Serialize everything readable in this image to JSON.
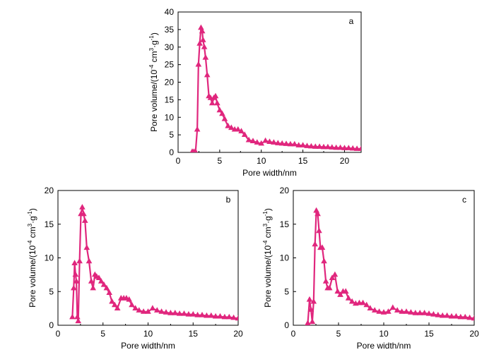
{
  "chart_data": [
    {
      "type": "line",
      "panel_label": "a",
      "xlabel": "Pore width/nm",
      "ylabel_main": "Pore volume/(10",
      "ylabel_exp1": "-4",
      "ylabel_mid": " cm",
      "ylabel_exp2": "3",
      "ylabel_mid2": "·g",
      "ylabel_exp3": "-1",
      "ylabel_end": ")",
      "xlim": [
        0,
        22
      ],
      "ylim": [
        0,
        40
      ],
      "xticks": [
        "0",
        "5",
        "10",
        "15",
        "20"
      ],
      "yticks": [
        "0",
        "5",
        "10",
        "15",
        "20",
        "25",
        "30",
        "35",
        "40"
      ],
      "color": "#e0267d",
      "marker": "triangle",
      "grid": false,
      "series": [
        {
          "x": [
            1.7,
            1.9,
            2.1,
            2.3,
            2.45,
            2.6,
            2.75,
            2.9,
            3.0,
            3.15,
            3.3,
            3.5,
            3.7,
            3.9,
            4.1,
            4.3,
            4.5,
            4.7,
            5.0,
            5.3,
            5.6,
            6.0,
            6.4,
            6.8,
            7.2,
            7.6,
            8.0,
            8.5,
            9.0,
            9.5,
            10.0,
            10.5,
            11.0,
            11.5,
            12.0,
            12.5,
            13.0,
            13.5,
            14.0,
            14.5,
            15.0,
            15.5,
            16.0,
            16.5,
            17.0,
            17.5,
            18.0,
            18.5,
            19.0,
            19.5,
            20.0,
            20.5,
            21.0,
            21.5,
            22.0
          ],
          "y": [
            0.2,
            0.2,
            0.2,
            6.5,
            25,
            31,
            35.5,
            34.5,
            32,
            30,
            27,
            22,
            16,
            15.5,
            14,
            15.5,
            16,
            14,
            12,
            11,
            9.5,
            7.5,
            7,
            6.5,
            6.5,
            6,
            5,
            3.5,
            3.2,
            2.8,
            2.5,
            3.3,
            3,
            2.8,
            2.6,
            2.5,
            2.4,
            2.3,
            2.3,
            2.0,
            2.0,
            1.8,
            1.7,
            1.6,
            1.6,
            1.5,
            1.5,
            1.4,
            1.3,
            1.3,
            1.2,
            1.2,
            1.1,
            1.0,
            1.0
          ]
        }
      ]
    },
    {
      "type": "line",
      "panel_label": "b",
      "xlabel": "Pore width/nm",
      "ylabel_main": "Pore volume/(10",
      "ylabel_exp1": "-4",
      "ylabel_mid": " cm",
      "ylabel_exp2": "3",
      "ylabel_mid2": "·g",
      "ylabel_exp3": "-1",
      "ylabel_end": ")",
      "xlim": [
        0,
        20
      ],
      "ylim": [
        0,
        20
      ],
      "xticks": [
        "0",
        "5",
        "10",
        "15",
        "20"
      ],
      "yticks": [
        "0",
        "5",
        "10",
        "15",
        "20"
      ],
      "color": "#e0267d",
      "marker": "triangle",
      "grid": false,
      "series": [
        {
          "x": [
            1.6,
            1.75,
            1.85,
            1.95,
            2.05,
            2.15,
            2.25,
            2.4,
            2.55,
            2.7,
            2.85,
            3.0,
            3.2,
            3.45,
            3.7,
            3.9,
            4.1,
            4.3,
            4.55,
            4.8,
            5.1,
            5.4,
            5.7,
            6.0,
            6.3,
            6.6,
            7.0,
            7.3,
            7.6,
            7.9,
            8.2,
            8.6,
            9.0,
            9.5,
            10.0,
            10.5,
            11.0,
            11.5,
            12.0,
            12.5,
            13.0,
            13.5,
            14.0,
            14.5,
            15.0,
            15.5,
            16.0,
            16.5,
            17.0,
            17.5,
            18.0,
            18.5,
            19.0,
            19.5,
            20.0
          ],
          "y": [
            1.2,
            5.5,
            9.2,
            7.5,
            6.5,
            1.2,
            0.6,
            9.5,
            16.5,
            17.5,
            16.5,
            15.5,
            11.5,
            9.5,
            6.5,
            5.5,
            7.5,
            7.2,
            7,
            6.5,
            6,
            5.5,
            4.8,
            3.5,
            3,
            2.5,
            4,
            4,
            4,
            3.8,
            3,
            2.5,
            2.2,
            2,
            2,
            2.5,
            2.2,
            2,
            1.9,
            1.8,
            1.8,
            1.7,
            1.7,
            1.6,
            1.6,
            1.5,
            1.5,
            1.4,
            1.4,
            1.3,
            1.3,
            1.2,
            1.2,
            1.1,
            1.0
          ]
        }
      ]
    },
    {
      "type": "line",
      "panel_label": "c",
      "xlabel": "Pore width/nm",
      "ylabel_main": "Pore volume/(10",
      "ylabel_exp1": "-4",
      "ylabel_mid": " cm",
      "ylabel_exp2": "3",
      "ylabel_mid2": "·g",
      "ylabel_exp3": "-1",
      "ylabel_end": ")",
      "xlim": [
        0,
        20
      ],
      "ylim": [
        0,
        20
      ],
      "xticks": [
        "0",
        "5",
        "10",
        "15",
        "20"
      ],
      "yticks": [
        "0",
        "5",
        "10",
        "15",
        "20"
      ],
      "color": "#e0267d",
      "marker": "triangle",
      "grid": false,
      "series": [
        {
          "x": [
            1.6,
            1.8,
            1.95,
            2.1,
            2.25,
            2.4,
            2.55,
            2.7,
            2.85,
            3.0,
            3.2,
            3.4,
            3.6,
            3.8,
            4.0,
            4.3,
            4.6,
            4.9,
            5.2,
            5.5,
            5.8,
            6.1,
            6.5,
            6.9,
            7.3,
            7.7,
            8.1,
            8.5,
            9.0,
            9.5,
            10.0,
            10.5,
            11.0,
            11.5,
            12.0,
            12.5,
            13.0,
            13.5,
            14.0,
            14.5,
            15.0,
            15.5,
            16.0,
            16.5,
            17.0,
            17.5,
            18.0,
            18.5,
            19.0,
            19.5,
            20.0
          ],
          "y": [
            0.3,
            3.8,
            2.3,
            0.5,
            3.5,
            12,
            17,
            16.5,
            14,
            11.5,
            11.5,
            9.5,
            6.5,
            5.5,
            5.5,
            7,
            7.5,
            5,
            4.5,
            5,
            5,
            4,
            3.5,
            3.2,
            3.3,
            3.3,
            3,
            2.5,
            2.2,
            2,
            1.9,
            2,
            2.6,
            2.2,
            2,
            2,
            1.9,
            1.8,
            1.8,
            1.8,
            1.7,
            1.6,
            1.5,
            1.4,
            1.4,
            1.3,
            1.3,
            1.2,
            1.2,
            1.1,
            1.0
          ]
        }
      ]
    }
  ]
}
